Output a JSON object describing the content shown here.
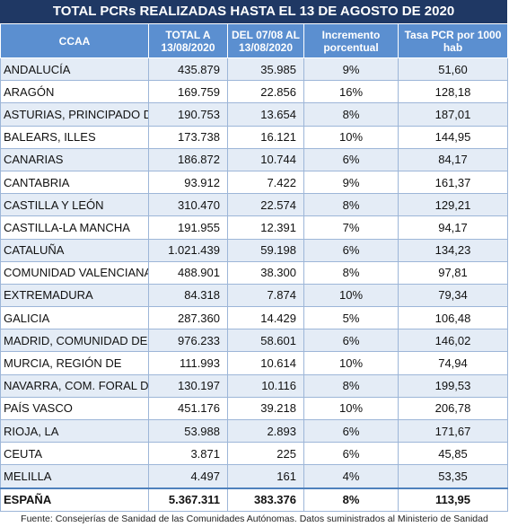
{
  "title": "TOTAL PCRs REALIZADAS HASTA EL 13 DE AGOSTO DE 2020",
  "table": {
    "header": [
      [
        "CCAA"
      ],
      [
        "TOTAL A",
        "13/08/2020"
      ],
      [
        "DEL 07/08 AL",
        "13/08/2020"
      ],
      [
        "Incremento",
        "porcentual"
      ],
      [
        "Tasa PCR por 1000",
        "hab"
      ]
    ],
    "rows": [
      [
        "ANDALUCÍA",
        "435.879",
        "35.985",
        "9%",
        "51,60"
      ],
      [
        "ARAGÓN",
        "169.759",
        "22.856",
        "16%",
        "128,18"
      ],
      [
        "ASTURIAS, PRINCIPADO DE",
        "190.753",
        "13.654",
        "8%",
        "187,01"
      ],
      [
        "BALEARS, ILLES",
        "173.738",
        "16.121",
        "10%",
        "144,95"
      ],
      [
        "CANARIAS",
        "186.872",
        "10.744",
        "6%",
        "84,17"
      ],
      [
        "CANTABRIA",
        "93.912",
        "7.422",
        "9%",
        "161,37"
      ],
      [
        "CASTILLA Y LEÓN",
        "310.470",
        "22.574",
        "8%",
        "129,21"
      ],
      [
        "CASTILLA-LA MANCHA",
        "191.955",
        "12.391",
        "7%",
        "94,17"
      ],
      [
        "CATALUÑA",
        "1.021.439",
        "59.198",
        "6%",
        "134,23"
      ],
      [
        "COMUNIDAD VALENCIANA",
        "488.901",
        "38.300",
        "8%",
        "97,81"
      ],
      [
        "EXTREMADURA",
        "84.318",
        "7.874",
        "10%",
        "79,34"
      ],
      [
        "GALICIA",
        "287.360",
        "14.429",
        "5%",
        "106,48"
      ],
      [
        "MADRID, COMUNIDAD DE",
        "976.233",
        "58.601",
        "6%",
        "146,02"
      ],
      [
        "MURCIA, REGIÓN DE",
        "111.993",
        "10.614",
        "10%",
        "74,94"
      ],
      [
        "NAVARRA, COM. FORAL DE",
        "130.197",
        "10.116",
        "8%",
        "199,53"
      ],
      [
        "PAÍS VASCO",
        "451.176",
        "39.218",
        "10%",
        "206,78"
      ],
      [
        "RIOJA, LA",
        "53.988",
        "2.893",
        "6%",
        "171,67"
      ],
      [
        "CEUTA",
        "3.871",
        "225",
        "6%",
        "45,85"
      ],
      [
        "MELILLA",
        "4.497",
        "161",
        "4%",
        "53,35"
      ]
    ],
    "total": [
      "ESPAÑA",
      "5.367.311",
      "383.376",
      "8%",
      "113,95"
    ]
  },
  "footnote": "Fuente: Consejerías de Sanidad de las Comunidades Autónomas. Datos suministrados al Ministerio de Sanidad"
}
